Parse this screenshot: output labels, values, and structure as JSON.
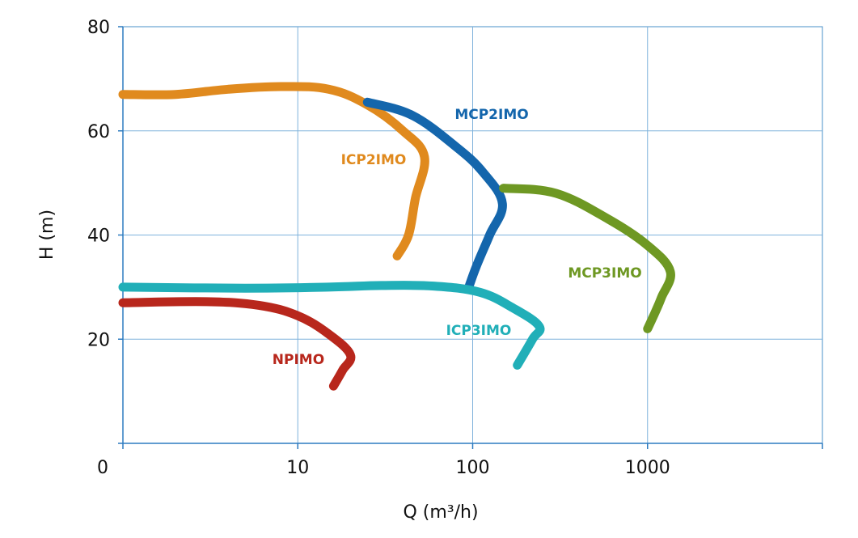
{
  "chart_data": {
    "type": "line",
    "title": "",
    "xlabel": "Q (m³/h)",
    "ylabel": "H (m)",
    "x_scale": "log",
    "xlim": [
      1,
      10000
    ],
    "ylim": [
      0,
      80
    ],
    "grid": true,
    "x_tick_labels": [
      "0",
      "10",
      "100",
      "1000"
    ],
    "y_tick_labels": [
      "20",
      "40",
      "60",
      "80"
    ],
    "series": [
      {
        "name": "ICP2IMO",
        "color": "#E08A1E",
        "points": [
          [
            1,
            67
          ],
          [
            2,
            67
          ],
          [
            4,
            68
          ],
          [
            8,
            68.5
          ],
          [
            15,
            68
          ],
          [
            25,
            65
          ],
          [
            40,
            60
          ],
          [
            53,
            55
          ],
          [
            47,
            47
          ],
          [
            43,
            40
          ],
          [
            37,
            36
          ]
        ]
      },
      {
        "name": "MCP2IMO",
        "color": "#1466AC",
        "points": [
          [
            25,
            65.5
          ],
          [
            45,
            63
          ],
          [
            80,
            57
          ],
          [
            115,
            52
          ],
          [
            148,
            46
          ],
          [
            125,
            40
          ],
          [
            105,
            34
          ],
          [
            95,
            30
          ]
        ]
      },
      {
        "name": "MCP3IMO",
        "color": "#6E9823",
        "points": [
          [
            150,
            49
          ],
          [
            300,
            48
          ],
          [
            600,
            43
          ],
          [
            1000,
            38
          ],
          [
            1350,
            33
          ],
          [
            1200,
            28
          ],
          [
            1100,
            25
          ],
          [
            1000,
            22
          ]
        ]
      },
      {
        "name": "ICP3IMO",
        "color": "#21AFB8",
        "points": [
          [
            1,
            30
          ],
          [
            5,
            29.8
          ],
          [
            15,
            30
          ],
          [
            30,
            30.3
          ],
          [
            60,
            30.2
          ],
          [
            110,
            29
          ],
          [
            170,
            26
          ],
          [
            240,
            22.5
          ],
          [
            220,
            20
          ],
          [
            180,
            15
          ]
        ]
      },
      {
        "name": "NPIMO",
        "color": "#B8271C",
        "points": [
          [
            1,
            27
          ],
          [
            3,
            27.2
          ],
          [
            6,
            26.5
          ],
          [
            10,
            24.5
          ],
          [
            15,
            21
          ],
          [
            20,
            17
          ],
          [
            18,
            14
          ],
          [
            16,
            11
          ]
        ]
      }
    ]
  }
}
